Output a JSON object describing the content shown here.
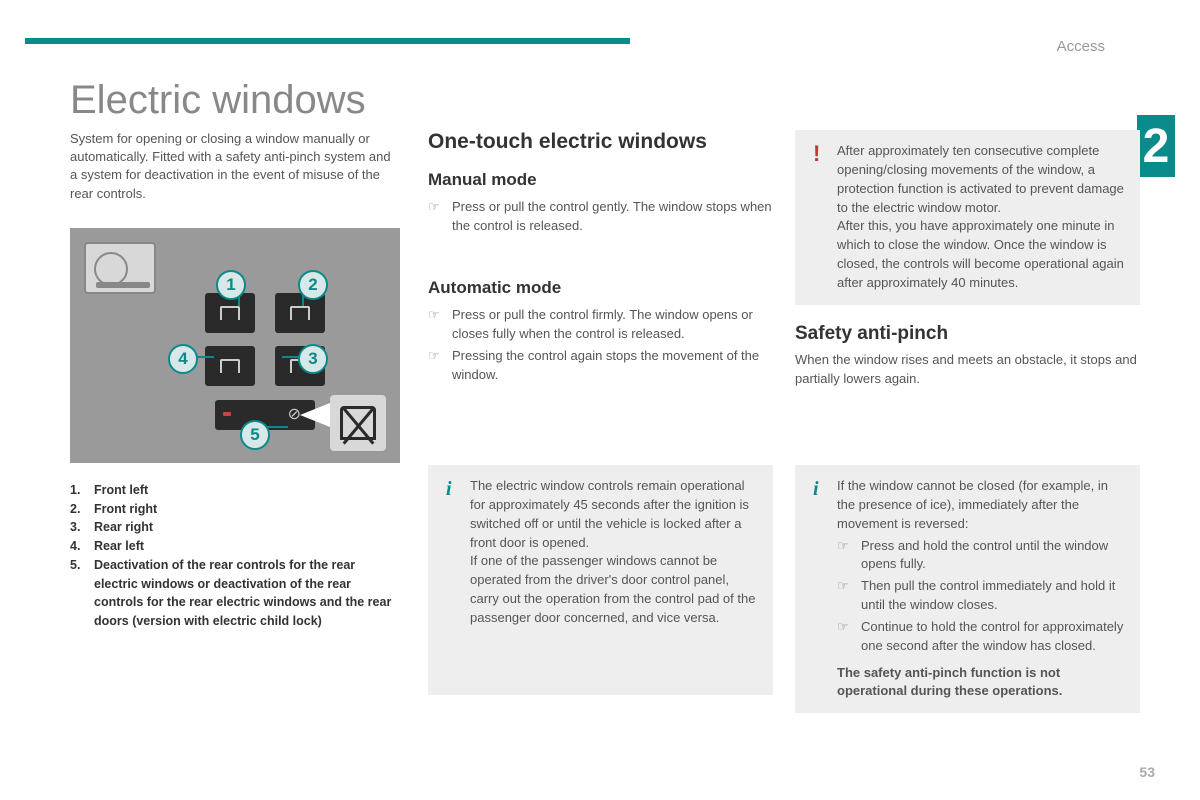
{
  "header": {
    "section": "Access",
    "chapter_number": "2",
    "accent_color": "#0a8a8a",
    "bg_color": "#ffffff"
  },
  "title": "Electric windows",
  "intro": "System for opening or closing a window manually or automatically. Fitted with a safety anti-pinch system and a system for deactivation in the event of misuse of the rear controls.",
  "diagram": {
    "numbers": [
      "1",
      "2",
      "3",
      "4",
      "5"
    ]
  },
  "legend": [
    {
      "num": "1.",
      "text": "Front left"
    },
    {
      "num": "2.",
      "text": "Front right"
    },
    {
      "num": "3.",
      "text": "Rear right"
    },
    {
      "num": "4.",
      "text": "Rear left"
    },
    {
      "num": "5.",
      "text": "Deactivation of the rear controls for the rear electric windows or deactivation of the rear controls for the rear electric windows and the rear doors (version with electric child lock)"
    }
  ],
  "col2": {
    "heading": "One-touch electric windows",
    "manual": {
      "title": "Manual mode",
      "items": [
        "Press or pull the control gently. The window stops when the control is released."
      ]
    },
    "auto": {
      "title": "Automatic mode",
      "items": [
        "Press or pull the control firmly. The window opens or closes fully when the control is released.",
        "Pressing the control again stops the movement of the window."
      ]
    },
    "info": "The electric window controls remain operational for approximately 45 seconds after the ignition is switched off or until the vehicle is locked after a front door is opened.\nIf one of the passenger windows cannot be operated from the driver's door control panel, carry out the operation from the control pad of the passenger door concerned, and vice versa."
  },
  "col3": {
    "warning": "After approximately ten consecutive complete opening/closing movements of the window, a protection function is activated to prevent damage to the electric window motor.\nAfter this, you have approximately one minute in which to close the window. Once the window is closed, the controls will become operational again after approximately 40 minutes.",
    "safety": {
      "title": "Safety anti-pinch",
      "text": "When the window rises and meets an obstacle, it stops and partially lowers again."
    },
    "info": {
      "lead": "If the window cannot be closed (for example, in the presence of ice), immediately after the movement is reversed:",
      "items": [
        "Press and hold the control until the window opens fully.",
        "Then pull the control immediately and hold it until the window closes.",
        "Continue to hold the control for approximately one second after the window has closed."
      ],
      "note": "The safety anti-pinch function is not operational during these operations."
    }
  },
  "page_number": "53",
  "bullet_symbol": "☞"
}
